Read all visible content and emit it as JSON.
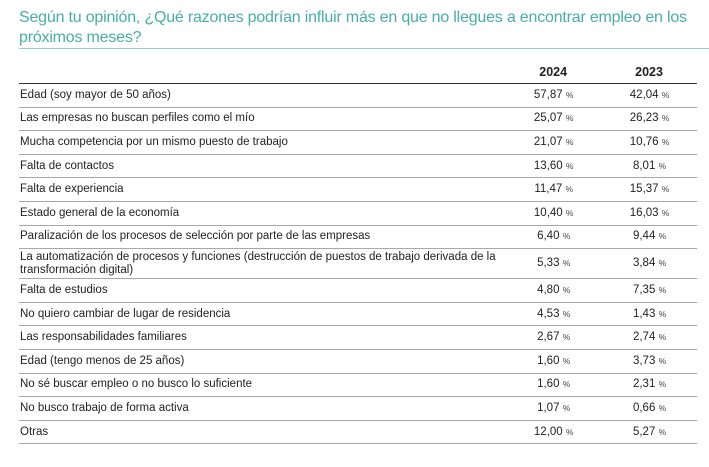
{
  "title": "Según tu opinión, ¿Qué razones podrían influir más en que no llegues a encontrar empleo en los próximos meses?",
  "columns": [
    "2024",
    "2023"
  ],
  "unit": "%",
  "rows": [
    {
      "label": "Edad (soy mayor de 50 años)",
      "v2024": "57,87",
      "v2023": "42,04"
    },
    {
      "label": "Las empresas no buscan perfiles como el mío",
      "v2024": "25,07",
      "v2023": "26,23"
    },
    {
      "label": "Mucha competencia por un mismo puesto de trabajo",
      "v2024": "21,07",
      "v2023": "10,76"
    },
    {
      "label": "Falta de contactos",
      "v2024": "13,60",
      "v2023": "8,01"
    },
    {
      "label": "Falta de experiencia",
      "v2024": "11,47",
      "v2023": "15,37"
    },
    {
      "label": "Estado general de la economía",
      "v2024": "10,40",
      "v2023": "16,03"
    },
    {
      "label": "Paralización de los procesos de selección por parte de las empresas",
      "v2024": "6,40",
      "v2023": "9,44"
    },
    {
      "label": "La automatización de procesos y funciones (destrucción de puestos de trabajo derivada de la transformación digital)",
      "v2024": "5,33",
      "v2023": "3,84"
    },
    {
      "label": "Falta de estudios",
      "v2024": "4,80",
      "v2023": "7,35"
    },
    {
      "label": "No quiero cambiar de lugar de residencia",
      "v2024": "4,53",
      "v2023": "1,43"
    },
    {
      "label": "Las responsabilidades familiares",
      "v2024": "2,67",
      "v2023": "2,74"
    },
    {
      "label": "Edad (tengo menos de 25 años)",
      "v2024": "1,60",
      "v2023": "3,73"
    },
    {
      "label": "No sé buscar empleo o no busco lo suficiente",
      "v2024": "1,60",
      "v2023": "2,31"
    },
    {
      "label": "No busco trabajo de forma activa",
      "v2024": "1,07",
      "v2023": "0,66"
    },
    {
      "label": "Otras",
      "v2024": "12,00",
      "v2023": "5,27"
    }
  ],
  "colors": {
    "title": "#47aea3",
    "rule": "#8fd0c8"
  }
}
